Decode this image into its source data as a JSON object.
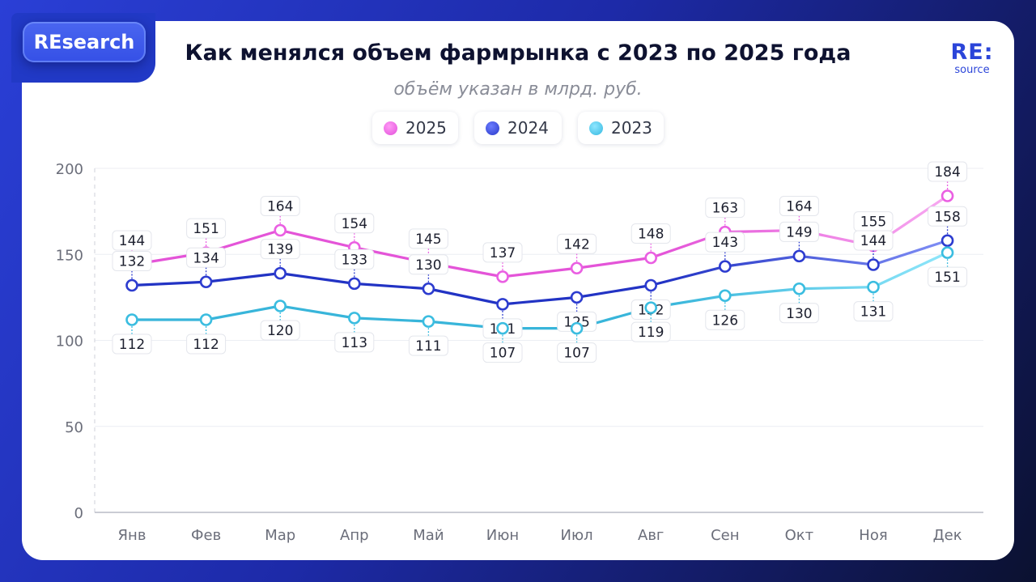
{
  "badge": "REsearch",
  "logo": {
    "line1": "RE:",
    "line2": "source"
  },
  "chart_data": {
    "type": "line",
    "title": "Как менялся объем фармрынка с 2023 по 2025 года",
    "subtitle": "объём указан в млрд. руб.",
    "categories": [
      "Янв",
      "Фев",
      "Мар",
      "Апр",
      "Май",
      "Июн",
      "Июл",
      "Авг",
      "Сен",
      "Окт",
      "Ноя",
      "Дек"
    ],
    "ylim": [
      0,
      200
    ],
    "yticks": [
      0,
      50,
      100,
      150,
      200
    ],
    "grid": true,
    "legend_position": "top-center",
    "series": [
      {
        "name": "2025",
        "color": "#ea5fe2",
        "values": [
          144,
          151,
          164,
          154,
          145,
          137,
          142,
          148,
          163,
          164,
          155,
          184
        ],
        "labels": "above"
      },
      {
        "name": "2024",
        "color": "#2d3ccf",
        "values": [
          132,
          134,
          139,
          133,
          130,
          121,
          125,
          132,
          143,
          149,
          144,
          158
        ],
        "labels": "mixed"
      },
      {
        "name": "2023",
        "color": "#3bbde0",
        "values": [
          112,
          112,
          120,
          113,
          111,
          107,
          107,
          119,
          126,
          130,
          131,
          151
        ],
        "labels": "below"
      }
    ]
  }
}
